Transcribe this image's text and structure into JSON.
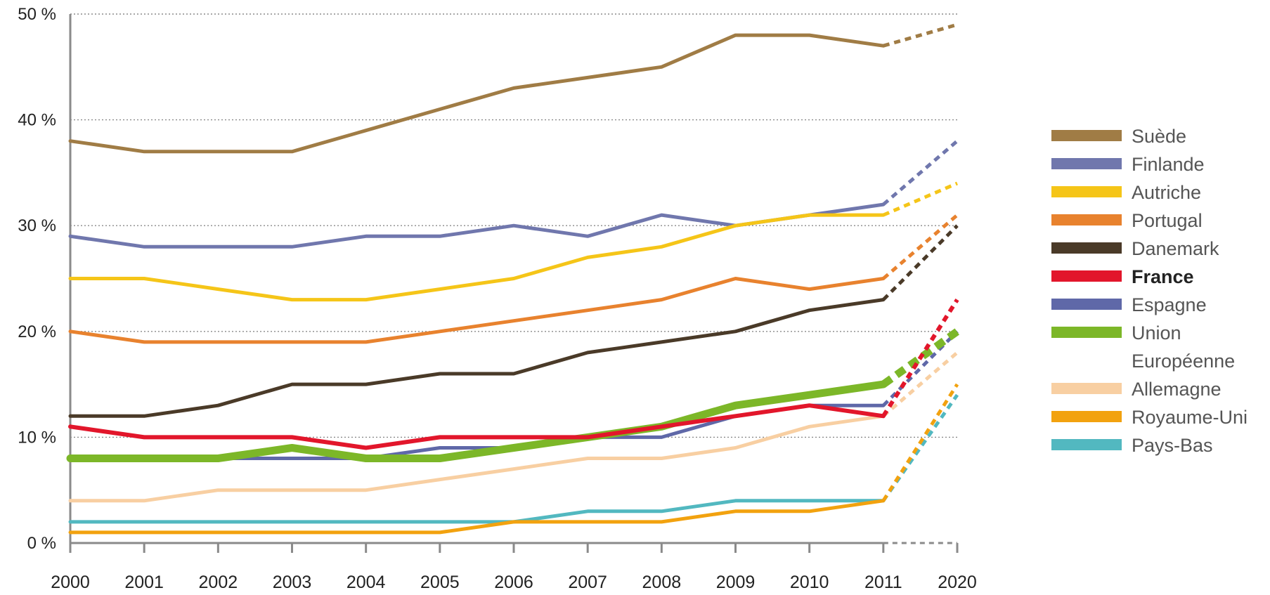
{
  "chart_data": {
    "type": "line",
    "title": "",
    "xlabel": "",
    "ylabel": "",
    "ylim": [
      0,
      50
    ],
    "x": [
      "2000",
      "2001",
      "2002",
      "2003",
      "2004",
      "2005",
      "2006",
      "2007",
      "2008",
      "2009",
      "2010",
      "2011",
      "2020"
    ],
    "y_ticks": [
      "0 %",
      "10 %",
      "20 %",
      "30 %",
      "40 %",
      "50 %"
    ],
    "y_tick_values": [
      0,
      10,
      20,
      30,
      40,
      50
    ],
    "grid": "horizontal dotted",
    "legend_position": "right",
    "projection_segment": "2011-2020 dashed",
    "series": [
      {
        "name": "Suède",
        "color": "#a07c45",
        "values": [
          38,
          37,
          37,
          37,
          39,
          41,
          43,
          44,
          45,
          48,
          48,
          47,
          49
        ]
      },
      {
        "name": "Finlande",
        "color": "#7077ad",
        "values": [
          29,
          28,
          28,
          28,
          29,
          29,
          30,
          29,
          31,
          30,
          31,
          32,
          38
        ]
      },
      {
        "name": "Autriche",
        "color": "#f5c518",
        "values": [
          25,
          25,
          24,
          23,
          23,
          24,
          25,
          27,
          28,
          30,
          31,
          31,
          34
        ]
      },
      {
        "name": "Portugal",
        "color": "#e8822e",
        "values": [
          20,
          19,
          19,
          19,
          19,
          20,
          21,
          22,
          23,
          25,
          24,
          25,
          31
        ]
      },
      {
        "name": "Danemark",
        "color": "#4a3a28",
        "values": [
          12,
          12,
          13,
          15,
          15,
          16,
          16,
          18,
          19,
          20,
          22,
          23,
          30
        ]
      },
      {
        "name": "France",
        "color": "#e2162b",
        "bold": true,
        "values": [
          11,
          10,
          10,
          10,
          9,
          10,
          10,
          10,
          11,
          12,
          13,
          12,
          23
        ]
      },
      {
        "name": "Espagne",
        "color": "#5f68a8",
        "values": [
          8,
          8,
          8,
          8,
          8,
          9,
          9,
          10,
          10,
          12,
          13,
          13,
          20
        ]
      },
      {
        "name": "Union Européenne",
        "name_lines": [
          "Union",
          "Européenne"
        ],
        "color": "#7cb728",
        "values": [
          8,
          8,
          8,
          9,
          8,
          8,
          9,
          10,
          11,
          13,
          14,
          15,
          20
        ]
      },
      {
        "name": "Allemagne",
        "color": "#f8cfa2",
        "values": [
          4,
          4,
          5,
          5,
          5,
          6,
          7,
          8,
          8,
          9,
          11,
          12,
          18
        ]
      },
      {
        "name": "Royaume-Uni",
        "color": "#f2a20f",
        "values": [
          1,
          1,
          1,
          1,
          1,
          1,
          2,
          2,
          2,
          3,
          3,
          4,
          15
        ]
      },
      {
        "name": "Pays-Bas",
        "color": "#52b8c0",
        "values": [
          2,
          2,
          2,
          2,
          2,
          2,
          2,
          3,
          3,
          4,
          4,
          4,
          14
        ]
      }
    ]
  }
}
